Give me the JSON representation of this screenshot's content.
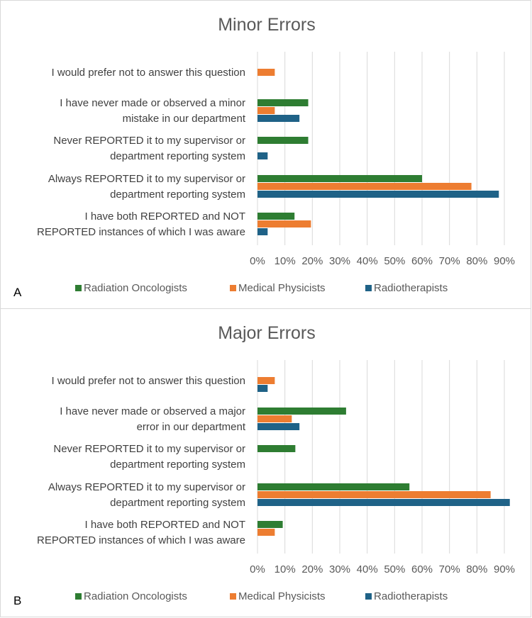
{
  "colors": {
    "Radiation Oncologists": "#2e7d32",
    "Medical Physicists": "#ed7d31",
    "Radiotherapists": "#1f6287"
  },
  "chart_data": [
    {
      "type": "bar",
      "orientation": "horizontal",
      "panel_label": "A",
      "title": "Minor Errors",
      "categories": [
        [
          "I would prefer not to answer this question"
        ],
        [
          "I have never made or observed a minor",
          "mistake in our department"
        ],
        [
          "Never REPORTED it to my supervisor or",
          "department reporting system"
        ],
        [
          "Always REPORTED it to my supervisor or",
          "department reporting system"
        ],
        [
          "I have both REPORTED and NOT",
          "REPORTED instances of which I was aware"
        ]
      ],
      "series": [
        {
          "name": "Radiation Oncologists",
          "values": [
            0,
            18.5,
            18.5,
            60,
            13.5
          ]
        },
        {
          "name": "Medical Physicists",
          "values": [
            6.3,
            6.3,
            0,
            78,
            19.5
          ]
        },
        {
          "name": "Radiotherapists",
          "values": [
            0,
            15.3,
            3.7,
            88,
            3.7
          ]
        }
      ],
      "xlim": [
        0,
        90
      ],
      "ticks": [
        "0%",
        "10%",
        "20%",
        "30%",
        "40%",
        "50%",
        "60%",
        "70%",
        "80%",
        "90%"
      ],
      "legend": [
        "Radiation Oncologists",
        "Medical Physicists",
        "Radiotherapists"
      ],
      "legend_position": "bottom"
    },
    {
      "type": "bar",
      "orientation": "horizontal",
      "panel_label": "B",
      "title": "Major Errors",
      "categories": [
        [
          "I would prefer not to answer this question"
        ],
        [
          "I have never made or observed a major",
          "error in our department"
        ],
        [
          "Never REPORTED it to my supervisor or",
          "department reporting system"
        ],
        [
          "Always REPORTED it to my supervisor or",
          "department reporting system"
        ],
        [
          "I have both REPORTED and NOT",
          "REPORTED instances of which I was aware"
        ]
      ],
      "series": [
        {
          "name": "Radiation Oncologists",
          "values": [
            0,
            32.3,
            13.8,
            55.4,
            9.2
          ]
        },
        {
          "name": "Medical Physicists",
          "values": [
            6.3,
            12.5,
            0,
            85,
            6.3
          ]
        },
        {
          "name": "Radiotherapists",
          "values": [
            3.7,
            15.3,
            0,
            92,
            0
          ]
        }
      ],
      "xlim": [
        0,
        90
      ],
      "ticks": [
        "0%",
        "10%",
        "20%",
        "30%",
        "40%",
        "50%",
        "60%",
        "70%",
        "80%",
        "90%"
      ],
      "legend": [
        "Radiation Oncologists",
        "Medical Physicists",
        "Radiotherapists"
      ],
      "legend_position": "bottom"
    }
  ]
}
